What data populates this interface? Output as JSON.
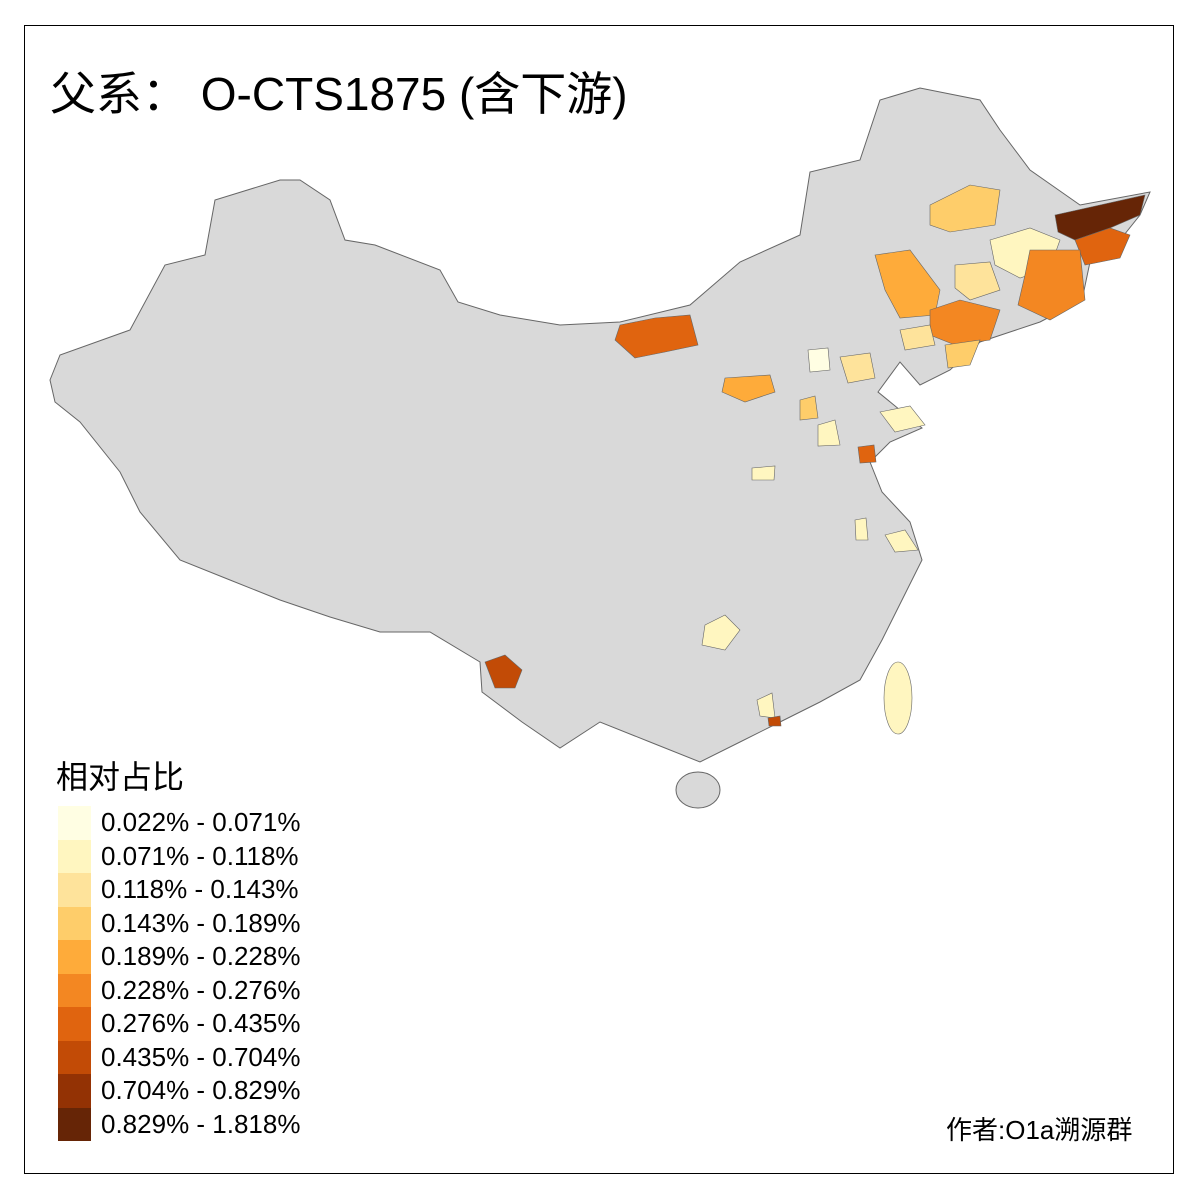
{
  "title": "父系： O-CTS1875 (含下游)",
  "legend": {
    "title": "相对占比",
    "items": [
      {
        "label": "0.022% - 0.071%",
        "color": "#fffee3"
      },
      {
        "label": "0.071% - 0.118%",
        "color": "#fff6c0"
      },
      {
        "label": "0.118% - 0.143%",
        "color": "#fee39b"
      },
      {
        "label": "0.143% - 0.189%",
        "color": "#fecd6a"
      },
      {
        "label": "0.189% - 0.228%",
        "color": "#feab3a"
      },
      {
        "label": "0.228% - 0.276%",
        "color": "#f38722"
      },
      {
        "label": "0.276% - 0.435%",
        "color": "#e0640f"
      },
      {
        "label": "0.435% - 0.704%",
        "color": "#c24b06"
      },
      {
        "label": "0.704% - 0.829%",
        "color": "#933204"
      },
      {
        "label": "0.829% - 1.818%",
        "color": "#662506"
      }
    ]
  },
  "map": {
    "base_color": "#d9d9d9",
    "border_color": "#666666"
  },
  "credit": "作者:O1a溯源群"
}
